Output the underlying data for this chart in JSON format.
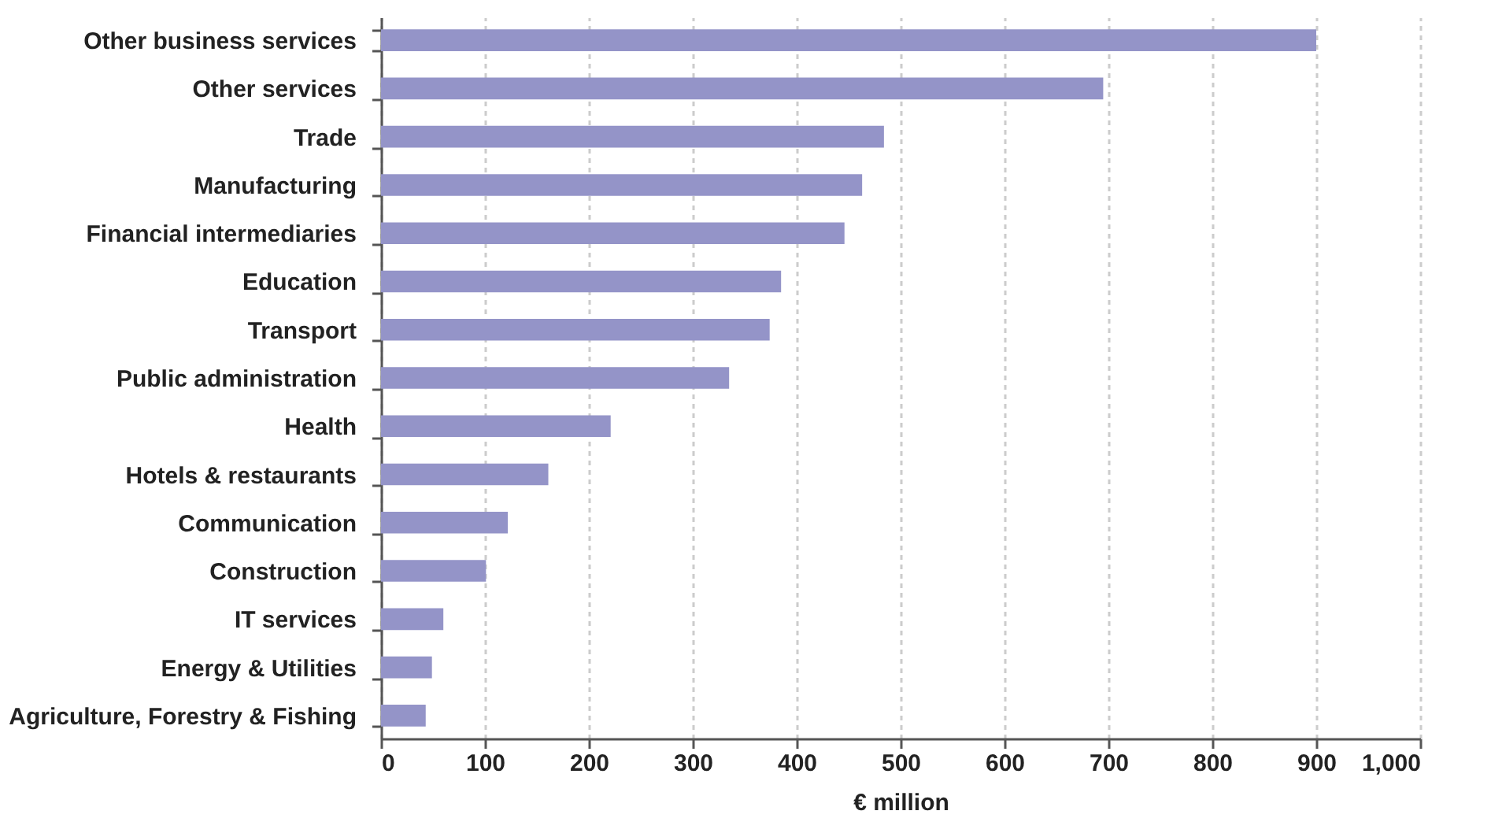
{
  "chart_data": {
    "type": "bar",
    "orientation": "horizontal",
    "xlabel": "€ million",
    "categories": [
      "Other business services",
      "Other services",
      "Trade",
      "Manufacturing",
      "Financial intermediaries",
      "Education",
      "Transport",
      "Public administration",
      "Health",
      "Hotels & restaurants",
      "Communication",
      "Construction",
      "IT services",
      "Energy & Utilities",
      "Agriculture, Forestry & Fishing"
    ],
    "values": [
      900,
      695,
      484,
      463,
      446,
      385,
      374,
      335,
      221,
      161,
      122,
      101,
      60,
      49,
      43
    ],
    "color": "#9494c8",
    "xlim": [
      0,
      1000
    ],
    "xticks": [
      0,
      100,
      200,
      300,
      400,
      500,
      600,
      700,
      800,
      900,
      {
        "value": 1000,
        "label": "1,000"
      }
    ],
    "grid": "x"
  }
}
